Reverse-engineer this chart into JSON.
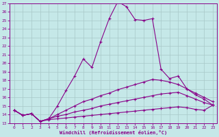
{
  "xlabel": "Windchill (Refroidissement éolien,°C)",
  "background_color": "#c5e8e8",
  "grid_color": "#a8c8c8",
  "line_color": "#880088",
  "xlim": [
    -0.5,
    23.5
  ],
  "ylim": [
    13,
    27
  ],
  "xticks": [
    0,
    1,
    2,
    3,
    4,
    5,
    6,
    7,
    8,
    9,
    10,
    11,
    12,
    13,
    14,
    15,
    16,
    17,
    18,
    19,
    20,
    21,
    22,
    23
  ],
  "yticks": [
    13,
    14,
    15,
    16,
    17,
    18,
    19,
    20,
    21,
    22,
    23,
    24,
    25,
    26,
    27
  ],
  "line1_x": [
    0,
    1,
    2,
    3,
    4,
    5,
    6,
    7,
    8,
    9,
    10,
    11,
    12,
    13,
    14,
    15,
    16,
    17,
    18,
    19,
    20,
    21,
    22,
    23
  ],
  "line1_y": [
    14.5,
    13.9,
    14.1,
    13.2,
    13.5,
    15.0,
    16.8,
    18.5,
    20.5,
    19.5,
    22.5,
    25.2,
    27.2,
    26.6,
    25.1,
    25.0,
    25.2,
    19.3,
    18.2,
    18.5,
    17.0,
    16.3,
    15.8,
    15.1
  ],
  "line2_x": [
    0,
    1,
    2,
    3,
    4,
    5,
    6,
    7,
    8,
    9,
    10,
    11,
    12,
    13,
    14,
    15,
    16,
    17,
    18,
    19,
    20,
    21,
    22,
    23
  ],
  "line2_y": [
    14.5,
    13.9,
    14.1,
    13.2,
    13.5,
    14.0,
    14.5,
    15.0,
    15.5,
    15.8,
    16.2,
    16.5,
    16.9,
    17.2,
    17.5,
    17.8,
    18.1,
    18.0,
    17.8,
    17.5,
    17.0,
    16.5,
    16.0,
    15.5
  ],
  "line3_x": [
    0,
    1,
    2,
    3,
    4,
    5,
    6,
    7,
    8,
    9,
    10,
    11,
    12,
    13,
    14,
    15,
    16,
    17,
    18,
    19,
    20,
    21,
    22,
    23
  ],
  "line3_y": [
    14.5,
    13.9,
    14.1,
    13.2,
    13.5,
    13.8,
    14.0,
    14.3,
    14.5,
    14.7,
    15.0,
    15.2,
    15.4,
    15.6,
    15.8,
    16.0,
    16.2,
    16.4,
    16.5,
    16.6,
    16.2,
    15.8,
    15.4,
    15.1
  ],
  "line4_x": [
    0,
    1,
    2,
    3,
    4,
    5,
    6,
    7,
    8,
    9,
    10,
    11,
    12,
    13,
    14,
    15,
    16,
    17,
    18,
    19,
    20,
    21,
    22,
    23
  ],
  "line4_y": [
    14.5,
    13.9,
    14.1,
    13.2,
    13.4,
    13.5,
    13.6,
    13.7,
    13.8,
    13.9,
    14.0,
    14.1,
    14.2,
    14.3,
    14.4,
    14.5,
    14.6,
    14.7,
    14.8,
    14.9,
    14.8,
    14.6,
    14.5,
    15.1
  ]
}
